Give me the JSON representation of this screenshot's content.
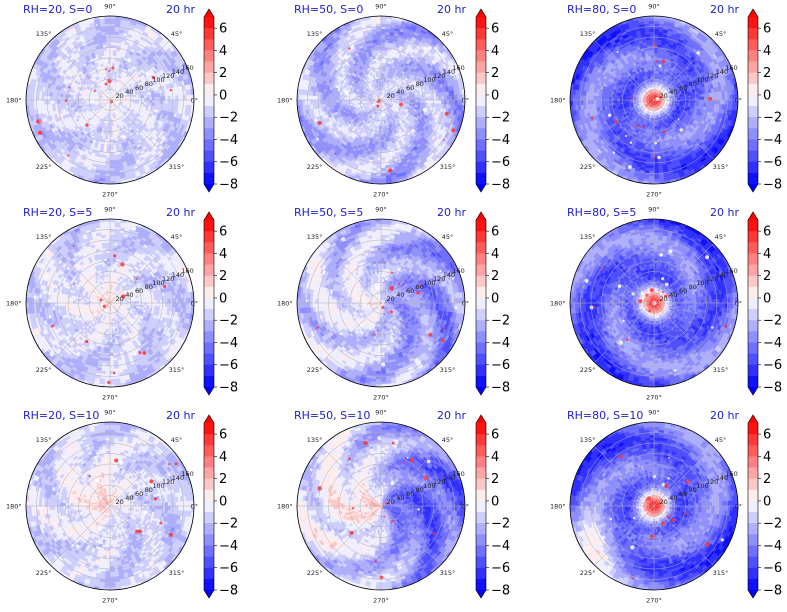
{
  "chart_data": {
    "type": "heatmap",
    "projection": "polar",
    "grid": true,
    "layout": {
      "rows": 3,
      "cols": 3
    },
    "angular_ticks": [
      "0°",
      "45°",
      "90°",
      "135°",
      "180°",
      "225°",
      "270°",
      "315°"
    ],
    "radial_ticks": [
      "20",
      "40",
      "60",
      "80",
      "100",
      "120",
      "140",
      "160"
    ],
    "colorbar": {
      "ticks": [
        "6",
        "4",
        "2",
        "0",
        "−2",
        "−4",
        "−6",
        "−8"
      ],
      "range": [
        -8,
        7
      ],
      "colormap": "bwr",
      "extend": "both"
    },
    "panels": [
      {
        "title": "RH=20, S=0",
        "time": "20 hr",
        "rh": 20,
        "s": 0
      },
      {
        "title": "RH=50, S=0",
        "time": "20 hr",
        "rh": 50,
        "s": 0
      },
      {
        "title": "RH=80, S=0",
        "time": "20 hr",
        "rh": 80,
        "s": 0
      },
      {
        "title": "RH=20, S=5",
        "time": "20 hr",
        "rh": 20,
        "s": 5
      },
      {
        "title": "RH=50, S=5",
        "time": "20 hr",
        "rh": 50,
        "s": 5
      },
      {
        "title": "RH=80, S=5",
        "time": "20 hr",
        "rh": 80,
        "s": 5
      },
      {
        "title": "RH=20, S=10",
        "time": "20 hr",
        "rh": 20,
        "s": 10
      },
      {
        "title": "RH=50, S=10",
        "time": "20 hr",
        "rh": 50,
        "s": 10
      },
      {
        "title": "RH=80, S=10",
        "time": "20 hr",
        "rh": 80,
        "s": 10
      }
    ]
  }
}
